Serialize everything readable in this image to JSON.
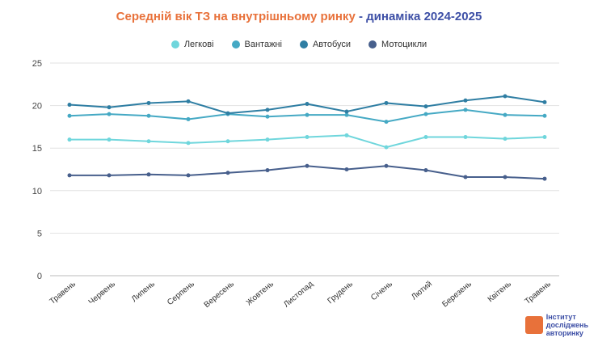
{
  "chart_data": {
    "type": "line",
    "title_part1": "Середній вік ТЗ на внутрішньому ринку",
    "title_sep": " - ",
    "title_part2": "динаміка 2024-2025",
    "xlabel": "",
    "ylabel": "",
    "ylim": [
      0,
      25
    ],
    "yticks": [
      0,
      5,
      10,
      15,
      20,
      25
    ],
    "grid": true,
    "legend_position": "top",
    "categories": [
      "Травень",
      "Червень",
      "Липень",
      "Серпень",
      "Вересень",
      "Жовтень",
      "Листопад",
      "Грудень",
      "Січень",
      "Лютий",
      "Березень",
      "Квітень",
      "Травень"
    ],
    "series": [
      {
        "name": "Легкові",
        "color": "#6fd6dc",
        "values": [
          16.0,
          16.0,
          15.8,
          15.6,
          15.8,
          16.0,
          16.3,
          16.5,
          15.1,
          16.3,
          16.3,
          16.1,
          16.3
        ]
      },
      {
        "name": "Вантажні",
        "color": "#45a9c4",
        "values": [
          18.8,
          19.0,
          18.8,
          18.4,
          19.0,
          18.7,
          18.9,
          18.9,
          18.1,
          19.0,
          19.5,
          18.9,
          18.8
        ]
      },
      {
        "name": "Автобуси",
        "color": "#2f7ea3",
        "values": [
          20.1,
          19.8,
          20.3,
          20.5,
          19.1,
          19.5,
          20.2,
          19.3,
          20.3,
          19.9,
          20.6,
          21.1,
          20.4
        ]
      },
      {
        "name": "Мотоцикли",
        "color": "#475f8c",
        "values": [
          11.8,
          11.8,
          11.9,
          11.8,
          12.1,
          12.4,
          12.9,
          12.5,
          12.9,
          12.4,
          11.6,
          11.6,
          11.4
        ]
      }
    ]
  },
  "logo": {
    "line1": "Інститут",
    "line2": "досліджень",
    "line3": "авторинку"
  }
}
